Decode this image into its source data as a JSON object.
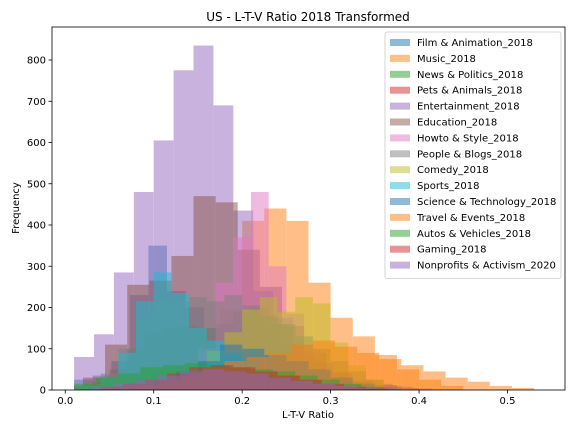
{
  "chart_data": {
    "type": "bar",
    "subtype": "overlapping-histogram",
    "title": "US - L-T-V Ratio 2018 Transformed",
    "xlabel": "L-T-V Ratio",
    "ylabel": "Frequency",
    "xlim": [
      -0.015,
      0.565
    ],
    "ylim": [
      0,
      880
    ],
    "xticks": [
      0.0,
      0.1,
      0.2,
      0.3,
      0.4,
      0.5
    ],
    "xtick_labels": [
      "0.0",
      "0.1",
      "0.2",
      "0.3",
      "0.4",
      "0.5"
    ],
    "yticks": [
      0,
      100,
      200,
      300,
      400,
      500,
      600,
      700,
      800
    ],
    "ytick_labels": [
      "0",
      "100",
      "200",
      "300",
      "400",
      "500",
      "600",
      "700",
      "800"
    ],
    "grid": false,
    "legend_position": "upper right",
    "bar_opacity": 0.5,
    "series": [
      {
        "name": "Film & Animation_2018",
        "color": "#1f77b4",
        "edges": [
          0.01,
          0.031,
          0.052,
          0.073,
          0.094,
          0.115,
          0.136,
          0.157,
          0.178,
          0.199,
          0.22,
          0.241,
          0.262,
          0.283,
          0.304,
          0.325
        ],
        "values": [
          25,
          35,
          70,
          230,
          350,
          240,
          200,
          150,
          120,
          80,
          60,
          40,
          25,
          15,
          8
        ]
      },
      {
        "name": "Music_2018",
        "color": "#ff7f0e",
        "edges": [
          0.1,
          0.125,
          0.15,
          0.175,
          0.2,
          0.225,
          0.25,
          0.275,
          0.3,
          0.325,
          0.35,
          0.375,
          0.4,
          0.425,
          0.45
        ],
        "values": [
          40,
          60,
          90,
          195,
          410,
          440,
          410,
          260,
          175,
          130,
          85,
          50,
          25,
          10
        ]
      },
      {
        "name": "News & Politics_2018",
        "color": "#2ca02c",
        "edges": [
          0.01,
          0.03,
          0.05,
          0.07,
          0.09,
          0.11,
          0.13,
          0.15,
          0.17,
          0.19,
          0.21,
          0.23,
          0.25,
          0.27,
          0.29,
          0.31,
          0.33,
          0.35
        ],
        "values": [
          10,
          20,
          50,
          100,
          140,
          150,
          155,
          150,
          160,
          190,
          200,
          160,
          110,
          70,
          40,
          20,
          8
        ]
      },
      {
        "name": "Pets & Animals_2018",
        "color": "#d62728",
        "edges": [
          0.05,
          0.075,
          0.1,
          0.125,
          0.15,
          0.175,
          0.2,
          0.225,
          0.25,
          0.275,
          0.3,
          0.325,
          0.35,
          0.375,
          0.4
        ],
        "values": [
          5,
          15,
          25,
          45,
          75,
          70,
          60,
          50,
          45,
          40,
          30,
          20,
          12,
          5
        ]
      },
      {
        "name": "Entertainment_2018",
        "color": "#9467bd",
        "edges": [
          0.01,
          0.0325,
          0.055,
          0.0775,
          0.1,
          0.1225,
          0.145,
          0.1675,
          0.19,
          0.2125,
          0.235,
          0.2575,
          0.28,
          0.3025,
          0.325,
          0.3475,
          0.37,
          0.3925,
          0.415
        ],
        "values": [
          80,
          135,
          285,
          480,
          605,
          775,
          835,
          690,
          435,
          240,
          175,
          110,
          65,
          40,
          25,
          15,
          8,
          4
        ]
      },
      {
        "name": "Education_2018",
        "color": "#8c564b",
        "edges": [
          0.02,
          0.045,
          0.07,
          0.095,
          0.12,
          0.145,
          0.17,
          0.195,
          0.22,
          0.245,
          0.27,
          0.295,
          0.32,
          0.345,
          0.37
        ],
        "values": [
          30,
          110,
          255,
          265,
          325,
          470,
          455,
          340,
          250,
          155,
          90,
          45,
          20,
          8
        ]
      },
      {
        "name": "Howto & Style_2018",
        "color": "#e377c2",
        "edges": [
          0.13,
          0.15,
          0.17,
          0.19,
          0.21,
          0.23,
          0.25,
          0.27,
          0.29,
          0.31,
          0.33
        ],
        "values": [
          35,
          100,
          260,
          370,
          480,
          300,
          185,
          95,
          40,
          15
        ]
      },
      {
        "name": "People & Blogs_2018",
        "color": "#7f7f7f",
        "edges": [
          0.02,
          0.04,
          0.06,
          0.08,
          0.1,
          0.12,
          0.14,
          0.16,
          0.18,
          0.2,
          0.22,
          0.24,
          0.26,
          0.28,
          0.3,
          0.32,
          0.34,
          0.36,
          0.38
        ],
        "values": [
          15,
          40,
          100,
          175,
          215,
          215,
          225,
          215,
          230,
          205,
          180,
          160,
          130,
          100,
          70,
          45,
          25,
          10
        ]
      },
      {
        "name": "Comedy_2018",
        "color": "#bcbd22",
        "edges": [
          0.12,
          0.14,
          0.16,
          0.18,
          0.2,
          0.22,
          0.24,
          0.26,
          0.28,
          0.3,
          0.32,
          0.34,
          0.36
        ],
        "values": [
          20,
          50,
          95,
          140,
          195,
          225,
          190,
          225,
          210,
          115,
          60,
          25
        ]
      },
      {
        "name": "Sports_2018",
        "color": "#17becf",
        "edges": [
          0.02,
          0.04,
          0.06,
          0.08,
          0.1,
          0.12,
          0.14,
          0.16,
          0.18,
          0.2,
          0.22,
          0.24,
          0.26,
          0.28,
          0.3
        ],
        "values": [
          10,
          30,
          90,
          215,
          285,
          235,
          150,
          120,
          90,
          70,
          50,
          35,
          20,
          8
        ]
      },
      {
        "name": "Science & Technology_2018",
        "color": "#1f77b4",
        "edges": [
          0.1,
          0.125,
          0.15,
          0.175,
          0.2,
          0.225,
          0.25,
          0.275,
          0.3,
          0.325,
          0.35,
          0.375
        ],
        "values": [
          20,
          45,
          70,
          110,
          100,
          85,
          70,
          50,
          30,
          15,
          6
        ]
      },
      {
        "name": "Travel & Events_2018",
        "color": "#ff7f0e",
        "edges": [
          0.08,
          0.105,
          0.13,
          0.155,
          0.18,
          0.205,
          0.23,
          0.255,
          0.28,
          0.305,
          0.33,
          0.355,
          0.38,
          0.405,
          0.43,
          0.455,
          0.48,
          0.505,
          0.53
        ],
        "values": [
          10,
          20,
          35,
          55,
          70,
          80,
          90,
          110,
          120,
          105,
          90,
          75,
          60,
          45,
          30,
          20,
          10,
          5
        ]
      },
      {
        "name": "Autos & Vehicles_2018",
        "color": "#2ca02c",
        "edges": [
          0.01,
          0.035,
          0.06,
          0.085,
          0.11,
          0.135,
          0.16,
          0.185,
          0.21,
          0.235,
          0.26,
          0.285,
          0.31,
          0.335,
          0.36
        ],
        "values": [
          15,
          30,
          40,
          55,
          60,
          65,
          60,
          55,
          50,
          45,
          35,
          25,
          15,
          8
        ]
      },
      {
        "name": "Gaming_2018",
        "color": "#d62728",
        "edges": [
          0.04,
          0.065,
          0.09,
          0.115,
          0.14,
          0.165,
          0.19,
          0.215,
          0.24,
          0.265,
          0.29,
          0.315,
          0.34,
          0.365
        ],
        "values": [
          8,
          15,
          25,
          40,
          55,
          60,
          55,
          45,
          35,
          25,
          15,
          8,
          4
        ]
      },
      {
        "name": "Nonprofits & Activism_2020",
        "color": "#9467bd",
        "edges": [
          0.03,
          0.055,
          0.08,
          0.105,
          0.13,
          0.155,
          0.18,
          0.205,
          0.23,
          0.255,
          0.28,
          0.305,
          0.33,
          0.355,
          0.38
        ],
        "values": [
          8,
          15,
          25,
          35,
          45,
          50,
          45,
          40,
          30,
          22,
          15,
          10,
          5,
          3
        ]
      }
    ]
  }
}
